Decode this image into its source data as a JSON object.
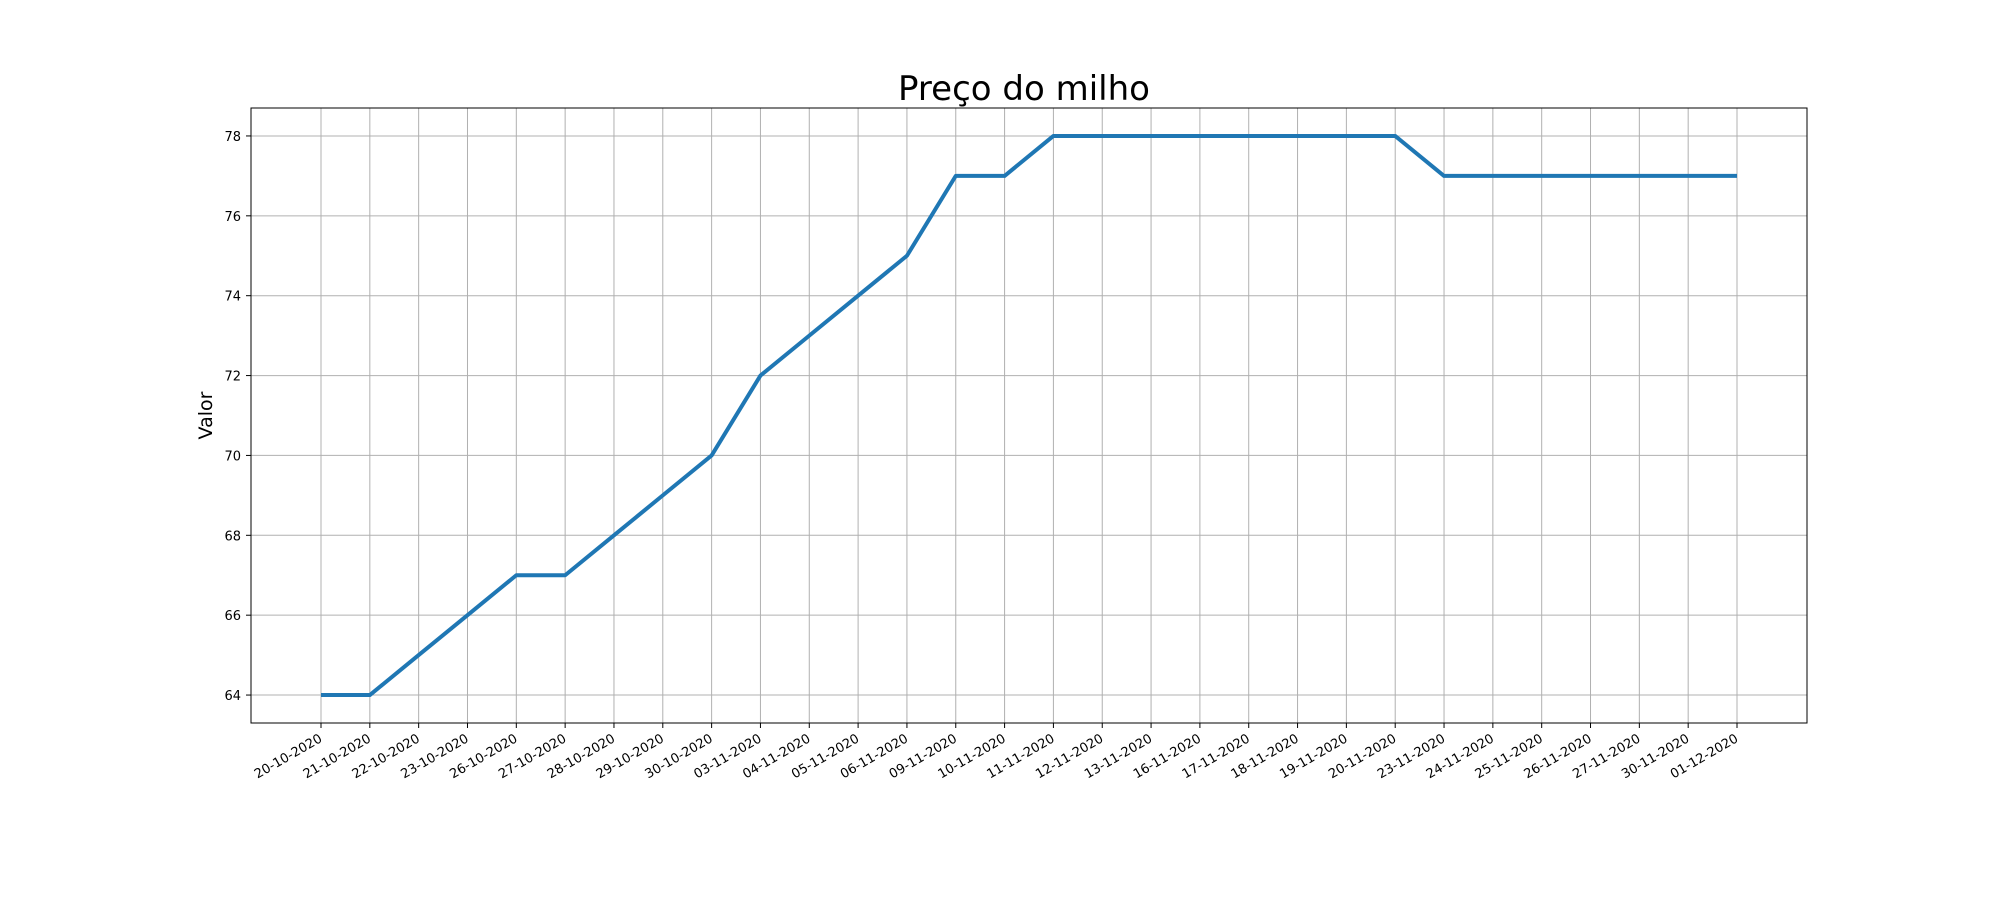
{
  "chart_data": {
    "type": "line",
    "title": "Preço do milho",
    "xlabel": "",
    "ylabel": "Valor",
    "categories": [
      "20-10-2020",
      "21-10-2020",
      "22-10-2020",
      "23-10-2020",
      "26-10-2020",
      "27-10-2020",
      "28-10-2020",
      "29-10-2020",
      "30-10-2020",
      "03-11-2020",
      "04-11-2020",
      "05-11-2020",
      "06-11-2020",
      "09-11-2020",
      "10-11-2020",
      "11-11-2020",
      "12-11-2020",
      "13-11-2020",
      "16-11-2020",
      "17-11-2020",
      "18-11-2020",
      "19-11-2020",
      "20-11-2020",
      "23-11-2020",
      "24-11-2020",
      "25-11-2020",
      "26-11-2020",
      "27-11-2020",
      "30-11-2020",
      "01-12-2020"
    ],
    "series": [
      {
        "values": [
          64,
          64,
          65,
          66,
          67,
          67,
          68,
          69,
          70,
          72,
          73,
          74,
          75,
          77,
          77,
          78,
          78,
          78,
          78,
          78,
          78,
          78,
          78,
          77,
          77,
          77,
          77,
          77,
          77,
          77
        ],
        "color": "#1f77b4"
      }
    ],
    "yticks": [
      64,
      66,
      68,
      70,
      72,
      74,
      76,
      78
    ],
    "ylim": [
      63.3,
      78.7
    ],
    "grid": true,
    "legend": "none",
    "x_tick_rotation": "rotated ~30 degrees"
  }
}
